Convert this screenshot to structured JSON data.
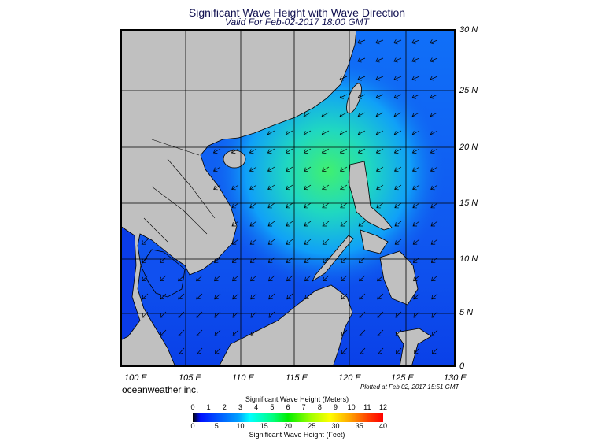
{
  "title": "Significant Wave Height with Wave Direction",
  "subtitle": "Valid For Feb-02-2017 18:00 GMT",
  "map": {
    "lat_labels": [
      "30 N",
      "25 N",
      "20 N",
      "15 N",
      "10 N",
      "5 N",
      "0"
    ],
    "lon_labels": [
      "100 E",
      "105 E",
      "110 E",
      "115 E",
      "120 E",
      "125 E",
      "130 E"
    ],
    "ocean_color": "#1050f0",
    "land_color": "#c0c0c0",
    "max_wave_region_color": "#40f070"
  },
  "footer": {
    "brand": "oceanweather inc.",
    "plotted": "Plotted at Feb 02, 2017 15:51 GMT"
  },
  "colorbar": {
    "title_meters": "Significant Wave Height (Meters)",
    "title_feet": "Significant Wave Height (Feet)",
    "meters_ticks": [
      "0",
      "1",
      "2",
      "3",
      "4",
      "5",
      "6",
      "7",
      "8",
      "9",
      "10",
      "11",
      "12"
    ],
    "feet_ticks": [
      "0",
      "5",
      "10",
      "15",
      "20",
      "25",
      "30",
      "35",
      "40"
    ],
    "range_meters": [
      0,
      12
    ]
  }
}
